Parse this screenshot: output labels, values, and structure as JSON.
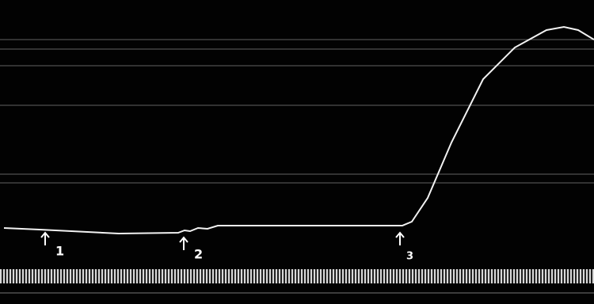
{
  "markers": [
    {
      "label": "1"
    },
    {
      "label": "2"
    },
    {
      "label": "3"
    }
  ]
}
